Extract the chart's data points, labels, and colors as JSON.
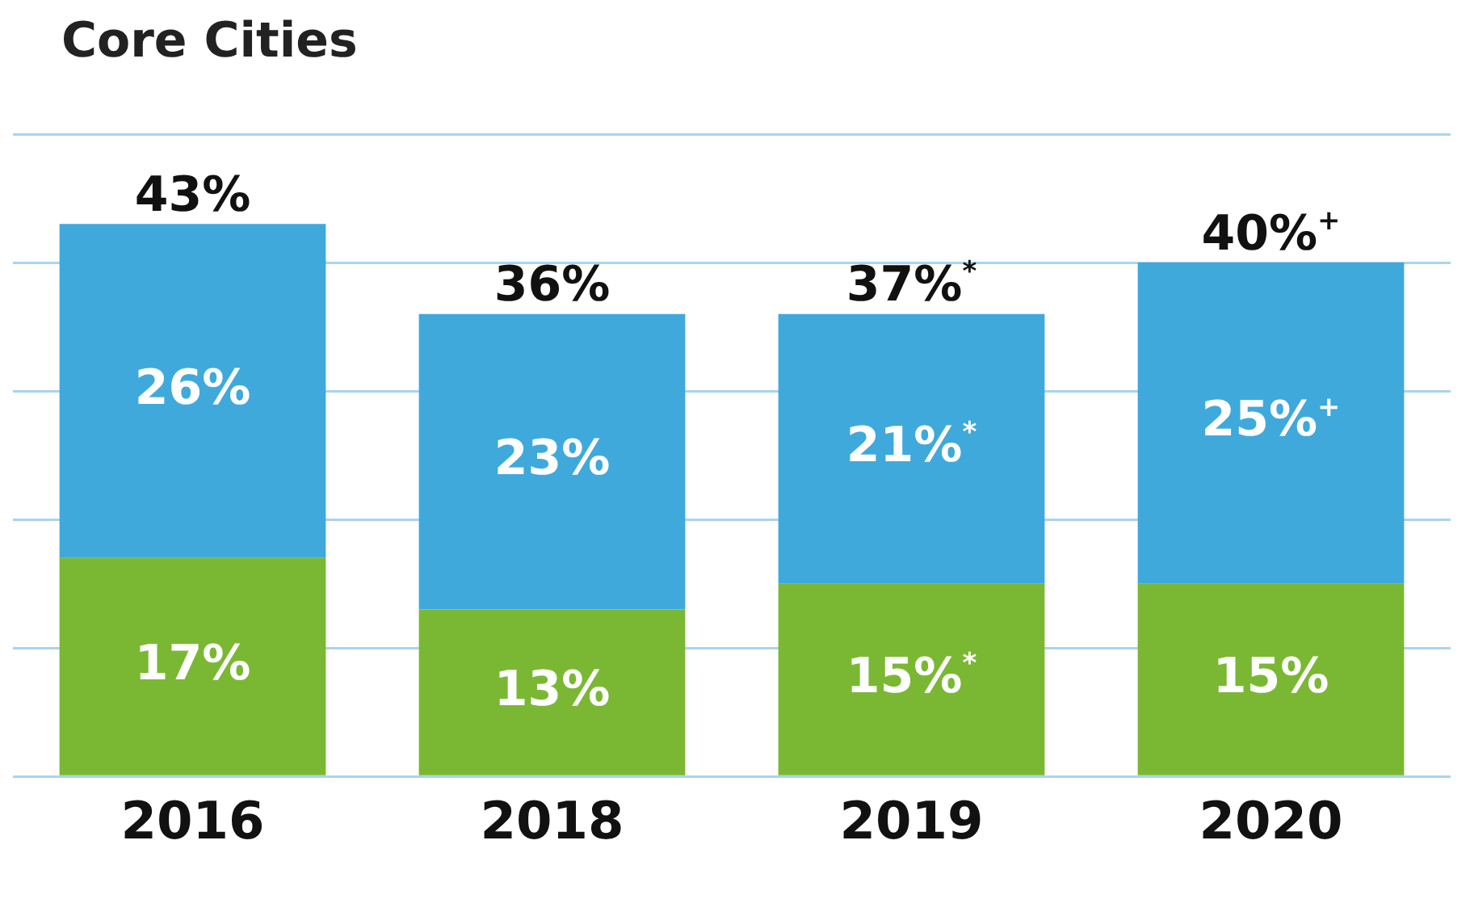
{
  "chart_data": {
    "type": "bar",
    "title": "Core Cities",
    "stacked": true,
    "categories": [
      "2016",
      "2018",
      "2019",
      "2020"
    ],
    "series": [
      {
        "color": "#7ab833",
        "values": [
          17,
          13,
          15,
          15
        ],
        "value_labels": [
          "17%",
          "13%",
          "15%$^{*}$",
          "15%"
        ]
      },
      {
        "color": "#3fa9dc",
        "values": [
          26,
          23,
          21,
          25
        ],
        "value_labels": [
          "26%",
          "23%",
          "21%$^{*}$",
          "25%$^{+}$"
        ]
      }
    ],
    "totals": [
      "43%",
      "36%",
      "37%$^{*}$",
      "40%$^{+}$"
    ],
    "ylim": [
      0,
      50
    ],
    "yticks": [
      {
        "value": 0,
        "label": null
      },
      {
        "value": 10,
        "label": null
      },
      {
        "value": 20,
        "label": null
      },
      {
        "value": 30,
        "label": null
      },
      {
        "value": 40,
        "label": null
      },
      {
        "value": 50,
        "label": null
      }
    ],
    "grid": "y",
    "tick_labels": "x",
    "legend": false
  }
}
